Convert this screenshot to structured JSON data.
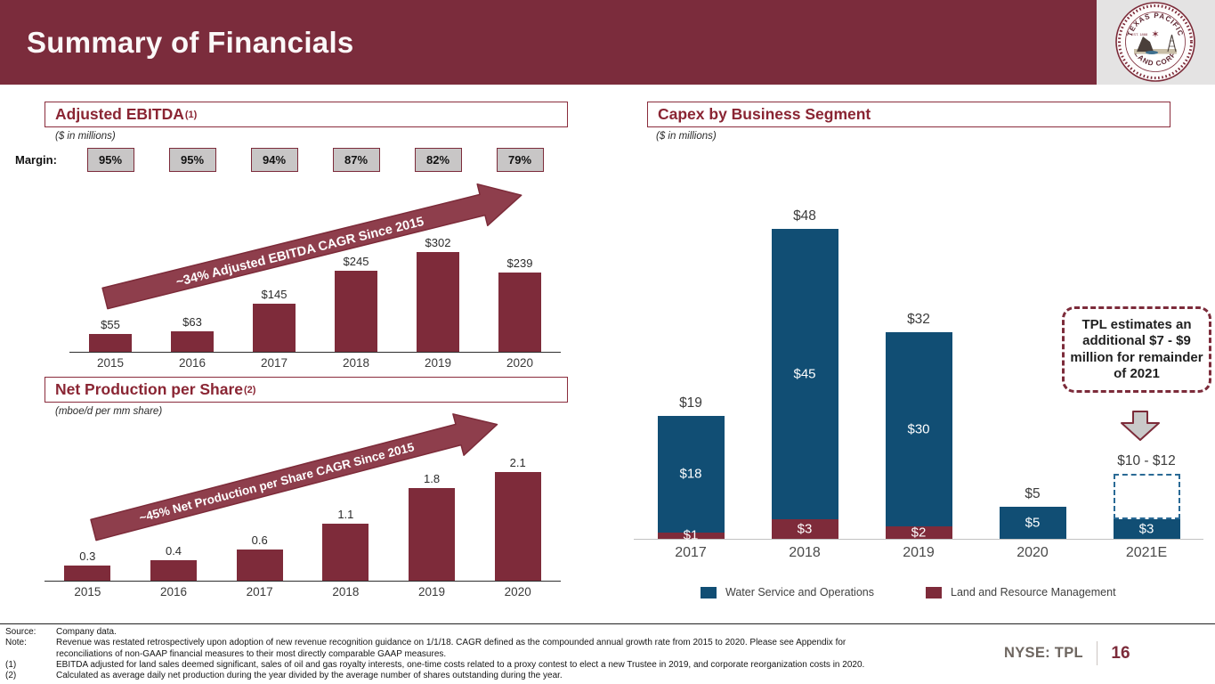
{
  "header": {
    "title": "Summary of Financials"
  },
  "logo": {
    "arc_top": "TEXAS PACIFIC",
    "arc_bottom": "LAND CORP",
    "est": "EST. 1888"
  },
  "colors": {
    "brand_maroon": "#7B2C3C",
    "bar_maroon": "#7E2B3A",
    "water_blue": "#114E74",
    "margin_box_bg": "#C8C6C6",
    "range_dash_blue": "#2A6A95",
    "page_number_maroon": "#7C2B3A"
  },
  "left_top": {
    "title": "Adjusted EBITDA",
    "title_sup": "(1)",
    "subtitle": "($ in millions)",
    "margin_label": "Margin:"
  },
  "left_bottom": {
    "title": "Net Production per Share",
    "title_sup": "(2)",
    "subtitle": "(mboe/d per mm share)"
  },
  "right": {
    "title": "Capex by Business Segment",
    "subtitle": "($ in millions)"
  },
  "chart_data": [
    {
      "id": "ebitda",
      "type": "bar",
      "title": "Adjusted EBITDA",
      "units": "$ in millions",
      "categories": [
        "2015",
        "2016",
        "2017",
        "2018",
        "2019",
        "2020"
      ],
      "values": [
        55,
        63,
        145,
        245,
        302,
        239
      ],
      "labels": [
        "$55",
        "$63",
        "$145",
        "$245",
        "$302",
        "$239"
      ],
      "margins": [
        "95%",
        "95%",
        "94%",
        "87%",
        "82%",
        "79%"
      ],
      "annotation": "~34% Adjusted EBITDA CAGR Since 2015",
      "bar_color": "#7E2B3A",
      "ylim": [
        0,
        310
      ],
      "grid": false
    },
    {
      "id": "production",
      "type": "bar",
      "title": "Net Production per Share",
      "units": "mboe/d per mm share",
      "categories": [
        "2015",
        "2016",
        "2017",
        "2018",
        "2019",
        "2020"
      ],
      "values": [
        0.3,
        0.4,
        0.6,
        1.1,
        1.8,
        2.1
      ],
      "labels": [
        "0.3",
        "0.4",
        "0.6",
        "1.1",
        "1.8",
        "2.1"
      ],
      "annotation": "~45% Net Production per Share CAGR Since 2015",
      "bar_color": "#7E2B3A",
      "ylim": [
        0,
        2.2
      ],
      "grid": false
    },
    {
      "id": "capex",
      "type": "stacked-bar",
      "title": "Capex by Business Segment",
      "units": "$ in millions",
      "categories": [
        "2017",
        "2018",
        "2019",
        "2020",
        "2021E"
      ],
      "series": [
        {
          "name": "Water Service and Operations",
          "color": "#114E74",
          "values": [
            18,
            45,
            30,
            5,
            3
          ],
          "labels": [
            "$18",
            "$45",
            "$30",
            "$5",
            "$3"
          ]
        },
        {
          "name": "Land and Resource Management",
          "color": "#7E2B3A",
          "values": [
            1,
            3,
            2,
            0,
            0
          ],
          "labels": [
            "$1",
            "$3",
            "$2",
            "",
            ""
          ]
        }
      ],
      "totals": [
        "$19",
        "$48",
        "$32",
        "$5",
        ""
      ],
      "range_estimate": {
        "category": "2021E",
        "label": "$10 - $12",
        "low": 10,
        "high": 12
      },
      "annotation": "TPL estimates an additional $7 - $9 million for remainder of 2021",
      "legend_position": "bottom",
      "ylim": [
        0,
        50
      ],
      "grid": false
    }
  ],
  "footer": {
    "rows": [
      {
        "label": "Source:",
        "text": "Company data."
      },
      {
        "label": "Note:",
        "text": "Revenue was restated retrospectively upon adoption of new revenue recognition guidance on 1/1/18. CAGR defined as the compounded annual growth rate from 2015 to 2020. Please see Appendix for"
      },
      {
        "label": "",
        "text": "reconciliations of non-GAAP financial measures to their most directly comparable GAAP measures."
      },
      {
        "label": "(1)",
        "text": "EBITDA adjusted for land sales deemed significant, sales of oil and gas royalty interests, one-time costs related to a proxy contest to elect a new Trustee in 2019, and corporate reorganization costs in 2020."
      },
      {
        "label": "(2)",
        "text": "Calculated as average daily net production during the year divided by the average number of shares outstanding during the year."
      }
    ],
    "ticker": "NYSE: TPL",
    "page": "16"
  }
}
